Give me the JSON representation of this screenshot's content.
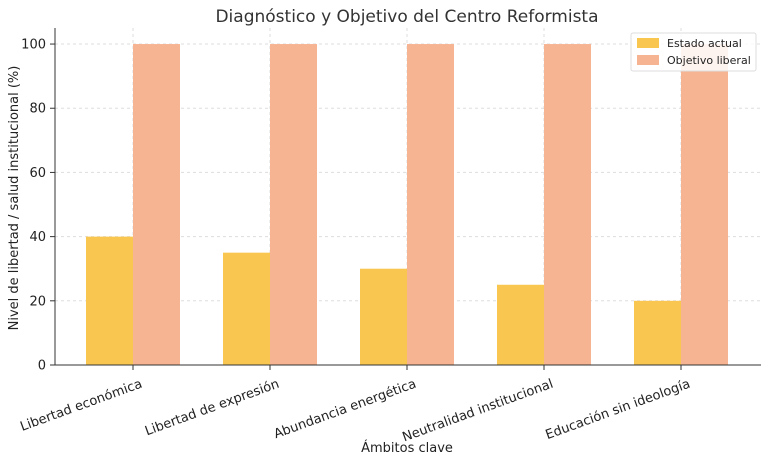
{
  "chart_data": {
    "type": "bar",
    "title": "Diagnóstico y Objetivo del Centro Reformista",
    "xlabel": "Ámbitos clave",
    "ylabel": "Nivel de libertad / salud institucional (%)",
    "categories": [
      "Libertad económica",
      "Libertad de expresión",
      "Abundancia energética",
      "Neutralidad institucional",
      "Educación sin ideología"
    ],
    "series": [
      {
        "name": "Estado actual",
        "values": [
          40,
          35,
          30,
          25,
          20
        ],
        "color": "#F9C74F"
      },
      {
        "name": "Objetivo liberal",
        "values": [
          100,
          100,
          100,
          100,
          100
        ],
        "color": "#F7B492"
      }
    ],
    "ylim": [
      0,
      105
    ],
    "yticks": [
      0,
      20,
      40,
      60,
      80,
      100
    ],
    "grid": true,
    "legend_position": "top-right"
  }
}
